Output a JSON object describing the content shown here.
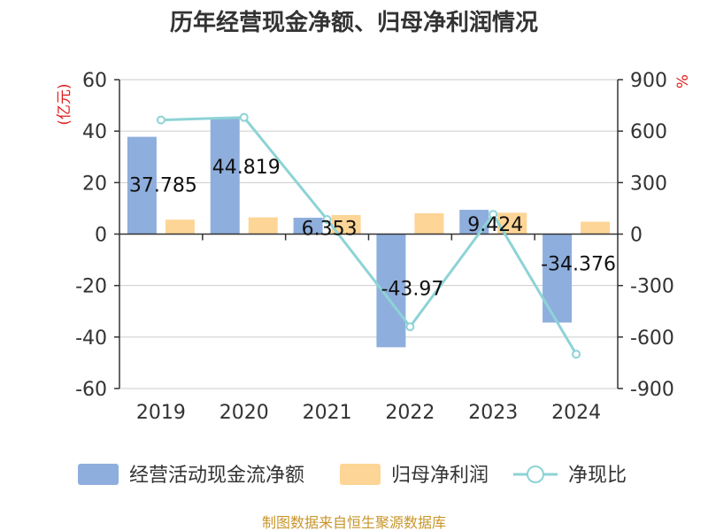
{
  "chart_data": {
    "type": "bar",
    "title": "历年经营现金净额、归母净利润情况",
    "categories": [
      "2019",
      "2020",
      "2021",
      "2022",
      "2023",
      "2024"
    ],
    "left_axis": {
      "unit": "(亿元)",
      "ylim": [
        -60,
        60
      ],
      "ticks": [
        "60",
        "40",
        "20",
        "0",
        "-20",
        "-40",
        "-60"
      ]
    },
    "right_axis": {
      "unit": "%",
      "ylim": [
        -900,
        900
      ],
      "ticks": [
        "900",
        "600",
        "300",
        "0",
        "-300",
        "-600",
        "-900"
      ]
    },
    "series": [
      {
        "name": "经营活动现金流净额",
        "kind": "bar",
        "axis": "left",
        "color": "#8eaedd",
        "values": [
          37.785,
          44.819,
          6.353,
          -43.97,
          9.424,
          -34.376
        ],
        "labels": [
          "37.785",
          "44.819",
          "6.353",
          "-43.97",
          "9.424",
          "-34.376"
        ]
      },
      {
        "name": "归母净利润",
        "kind": "bar",
        "axis": "left",
        "color": "#fdd596",
        "values": [
          5.6,
          6.5,
          7.4,
          8.1,
          8.3,
          4.8
        ]
      },
      {
        "name": "净现比",
        "kind": "line",
        "axis": "right",
        "color": "#8dd3d6",
        "values": [
          665,
          680,
          85,
          -540,
          115,
          -700
        ]
      }
    ],
    "grid": true,
    "legend": "bottom"
  },
  "source": "制图数据来自恒生聚源数据库"
}
